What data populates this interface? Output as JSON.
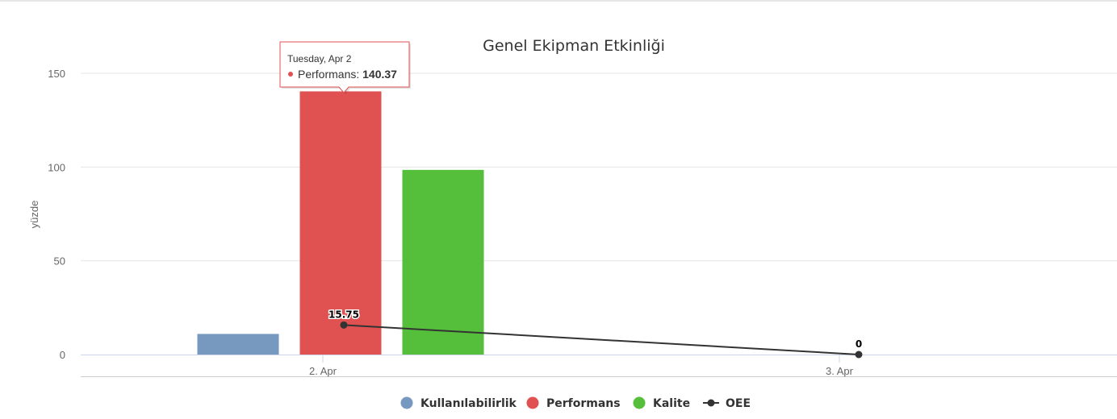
{
  "chart_data": {
    "type": "bar",
    "title": "Genel Ekipman Etkinliği",
    "ylabel": "yüzde",
    "xlabel": "",
    "ylim": [
      0,
      150
    ],
    "yticks": [
      0,
      50,
      100,
      150
    ],
    "categories": [
      "2. Apr",
      "3. Apr"
    ],
    "series": [
      {
        "name": "Kullanılabilirlik",
        "type": "bar",
        "color": "#7798bf",
        "values": [
          11,
          0
        ]
      },
      {
        "name": "Performans",
        "type": "bar",
        "color": "#e05252",
        "values": [
          140.37,
          0
        ]
      },
      {
        "name": "Kalite",
        "type": "bar",
        "color": "#55bf3b",
        "values": [
          98.5,
          0
        ]
      },
      {
        "name": "OEE",
        "type": "line",
        "color": "#333333",
        "values": [
          15.75,
          0
        ],
        "data_labels": [
          "15.75",
          "0"
        ]
      }
    ],
    "grid": true,
    "legend": "bottom-center",
    "tooltip": {
      "date": "Tuesday, Apr 2",
      "series": "Performans",
      "value": "140.37",
      "color": "#e05252"
    }
  }
}
